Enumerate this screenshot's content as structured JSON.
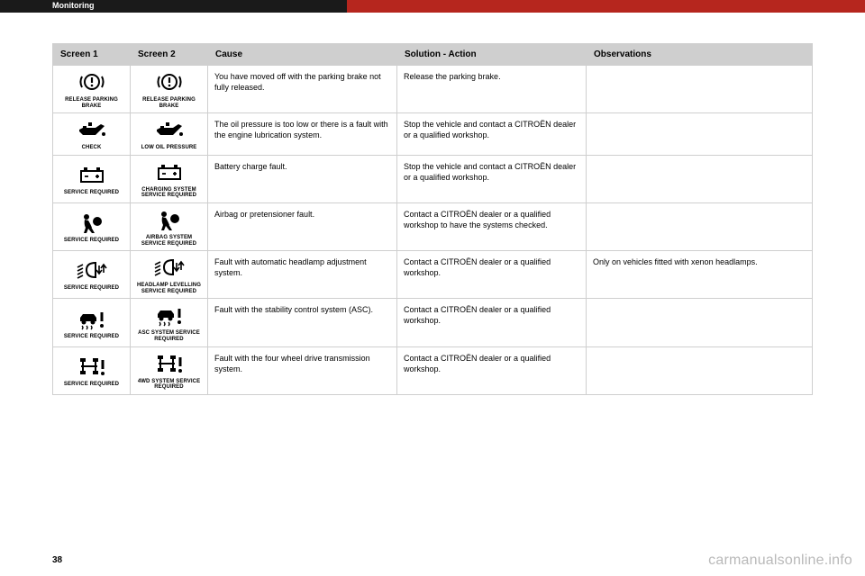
{
  "header": {
    "section": "Monitoring"
  },
  "pagenum": "38",
  "watermark": "carmanualsonline.info",
  "table": {
    "columns": [
      "Screen 1",
      "Screen 2",
      "Cause",
      "Solution - Action",
      "Observations"
    ],
    "rows": [
      {
        "screen1": {
          "icon": "parking-brake",
          "label": "RELEASE PARKING BRAKE"
        },
        "screen2": {
          "icon": "parking-brake",
          "label": "RELEASE PARKING BRAKE"
        },
        "cause": "You have moved off with the parking brake not fully released.",
        "solution": "Release the parking brake.",
        "observations": ""
      },
      {
        "screen1": {
          "icon": "oil-can",
          "label": "CHECK"
        },
        "screen2": {
          "icon": "oil-can",
          "label": "LOW OIL PRESSURE"
        },
        "cause": "The oil pressure is too low or there is a fault with the engine lubrication system.",
        "solution": "Stop the vehicle and contact a CITROËN dealer or a qualified workshop.",
        "observations": ""
      },
      {
        "screen1": {
          "icon": "battery",
          "label": "SERVICE REQUIRED"
        },
        "screen2": {
          "icon": "battery",
          "label": "CHARGING SYSTEM SERVICE REQUIRED"
        },
        "cause": "Battery charge fault.",
        "solution": "Stop the vehicle and contact a CITROËN dealer or a qualified workshop.",
        "observations": ""
      },
      {
        "screen1": {
          "icon": "airbag",
          "label": "SERVICE REQUIRED"
        },
        "screen2": {
          "icon": "airbag",
          "label": "AIRBAG SYSTEM SERVICE REQUIRED"
        },
        "cause": "Airbag or pretensioner fault.",
        "solution": "Contact a CITROËN dealer or a qualified workshop to have the systems checked.",
        "observations": ""
      },
      {
        "screen1": {
          "icon": "headlamp",
          "label": "SERVICE REQUIRED"
        },
        "screen2": {
          "icon": "headlamp",
          "label": "HEADLAMP LEVELLING SERVICE REQUIRED"
        },
        "cause": "Fault with automatic headlamp adjustment system.",
        "solution": "Contact a CITROËN dealer or a qualified workshop.",
        "observations": "Only on vehicles fitted with xenon headlamps."
      },
      {
        "screen1": {
          "icon": "asc",
          "label": "SERVICE REQUIRED"
        },
        "screen2": {
          "icon": "asc",
          "label": "ASC SYSTEM SERVICE REQUIRED"
        },
        "cause": "Fault with the stability control system (ASC).",
        "solution": "Contact a CITROËN dealer or a qualified workshop.",
        "observations": ""
      },
      {
        "screen1": {
          "icon": "4wd",
          "label": "SERVICE REQUIRED"
        },
        "screen2": {
          "icon": "4wd",
          "label": "4WD SYSTEM SERVICE REQUIRED"
        },
        "cause": "Fault with the four wheel drive transmission system.",
        "solution": "Contact a CITROËN dealer or a qualified workshop.",
        "observations": ""
      }
    ]
  }
}
